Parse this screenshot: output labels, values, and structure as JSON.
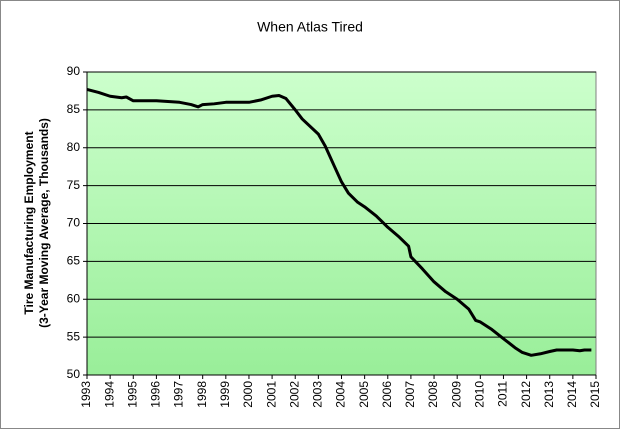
{
  "chart_data": {
    "type": "line",
    "title": "When Atlas Tired",
    "ylabel": [
      "Tire Manufacturing Employment",
      "(3-Year Moving Average, Thousands)"
    ],
    "series": [
      {
        "name": "Tire Manufacturing Employment",
        "color": "#000000",
        "x": [
          1993,
          1993.5,
          1994,
          1994.5,
          1994.7,
          1995,
          1996,
          1997,
          1997.5,
          1997.8,
          1998,
          1998.5,
          1999,
          2000,
          2000.5,
          2001,
          2001.3,
          2001.6,
          2002,
          2002.3,
          2003,
          2003.3,
          2003.7,
          2004,
          2004.3,
          2004.7,
          2005,
          2005.5,
          2006,
          2006.5,
          2006.9,
          2007,
          2007.5,
          2008,
          2008.5,
          2009,
          2009.5,
          2009.8,
          2010,
          2010.5,
          2011,
          2011.5,
          2011.8,
          2012.2,
          2012.6,
          2013,
          2013.3,
          2014,
          2014.3,
          2014.5,
          2014.8
        ],
        "values": [
          87.7,
          87.3,
          86.8,
          86.6,
          86.7,
          86.2,
          86.2,
          86.0,
          85.7,
          85.4,
          85.7,
          85.8,
          86.0,
          86.0,
          86.3,
          86.8,
          86.9,
          86.5,
          85.0,
          83.8,
          81.8,
          80.2,
          77.5,
          75.5,
          74.0,
          72.8,
          72.2,
          71.0,
          69.5,
          68.2,
          67.0,
          65.6,
          64.0,
          62.3,
          61.0,
          60.0,
          58.7,
          57.2,
          57.0,
          56.0,
          54.8,
          53.6,
          53.0,
          52.6,
          52.8,
          53.1,
          53.3,
          53.3,
          53.2,
          53.3,
          53.3
        ]
      }
    ],
    "xlim": [
      1993,
      2015
    ],
    "xticks": [
      1993,
      1994,
      1995,
      1996,
      1997,
      1998,
      1999,
      2000,
      2001,
      2002,
      2003,
      2004,
      2005,
      2006,
      2007,
      2008,
      2009,
      2010,
      2011,
      2012,
      2013,
      2014,
      2015
    ],
    "ylim": [
      50,
      90
    ],
    "yticks": [
      50,
      55,
      60,
      65,
      70,
      75,
      80,
      85,
      90
    ],
    "grid": true
  }
}
